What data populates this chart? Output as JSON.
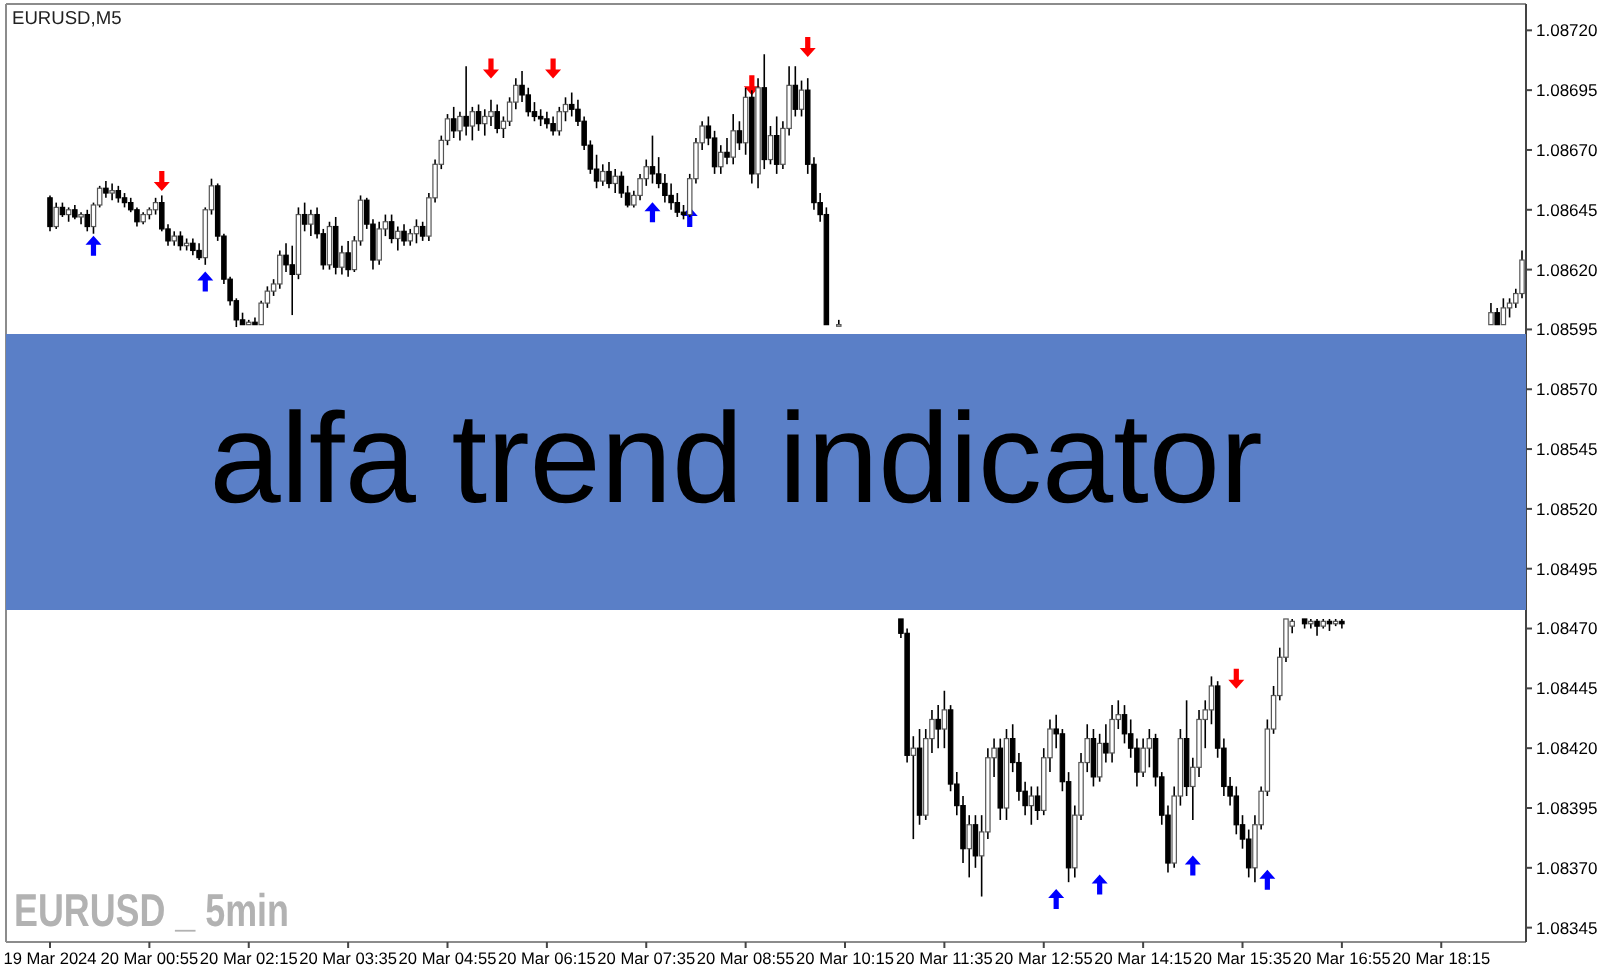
{
  "chart_data": {
    "type": "candlestick",
    "title": "EURUSD,M5",
    "annotations": [
      "alfa trend indicator",
      "EURUSD _ 5min"
    ],
    "categories": [
      "19 Mar 2024",
      null,
      null,
      null,
      null,
      null,
      null,
      null,
      null,
      null,
      null,
      null,
      null,
      null,
      null,
      null,
      "20 Mar 00:55",
      null,
      null,
      null,
      null,
      null,
      null,
      null,
      null,
      null,
      null,
      null,
      null,
      null,
      null,
      null,
      "20 Mar 02:15",
      null,
      null,
      null,
      null,
      null,
      null,
      null,
      null,
      null,
      null,
      null,
      null,
      null,
      null,
      null,
      "20 Mar 03:35",
      null,
      null,
      null,
      null,
      null,
      null,
      null,
      null,
      null,
      null,
      null,
      null,
      null,
      null,
      null,
      "20 Mar 04:55",
      null,
      null,
      null,
      null,
      null,
      null,
      null,
      null,
      null,
      null,
      null,
      null,
      null,
      null,
      null,
      "20 Mar 06:15",
      null,
      null,
      null,
      null,
      null,
      null,
      null,
      null,
      null,
      null,
      null,
      null,
      null,
      null,
      null,
      "20 Mar 07:35",
      null,
      null,
      null,
      null,
      null,
      null,
      null,
      null,
      null,
      null,
      null,
      null,
      null,
      null,
      null,
      "20 Mar 08:55",
      null,
      null,
      null,
      null,
      null,
      null,
      null,
      null,
      null,
      null,
      null,
      null,
      null,
      null,
      null,
      "20 Mar 10:15",
      null,
      null,
      null,
      null,
      null,
      null,
      null,
      null,
      null,
      null,
      null,
      null,
      null,
      null,
      null,
      "20 Mar 11:35",
      null,
      null,
      null,
      null,
      null,
      null,
      null,
      null,
      null,
      null,
      null,
      null,
      null,
      null,
      null,
      "20 Mar 12:55",
      null,
      null,
      null,
      null,
      null,
      null,
      null,
      null,
      null,
      null,
      null,
      null,
      null,
      null,
      null,
      "20 Mar 14:15",
      null,
      null,
      null,
      null,
      null,
      null,
      null,
      null,
      null,
      null,
      null,
      null,
      null,
      null,
      null,
      "20 Mar 15:35",
      null,
      null,
      null,
      null,
      null,
      null,
      null,
      null,
      null,
      null,
      null,
      null,
      null,
      null,
      null,
      "20 Mar 16:55",
      null,
      null,
      null,
      null,
      null,
      null,
      null,
      null,
      null,
      null,
      null,
      null,
      null,
      null,
      null,
      "20 Mar 18:15",
      null,
      null,
      null,
      null,
      null,
      null,
      null,
      null,
      null,
      null,
      null,
      null,
      null
    ],
    "ohlc": [
      [
        1.0865,
        1.08651,
        1.08636,
        1.08638
      ],
      [
        1.08638,
        1.08648,
        1.08637,
        1.08646
      ],
      [
        1.08646,
        1.08648,
        1.08642,
        1.08643
      ],
      [
        1.08643,
        1.08646,
        1.0864,
        1.08645
      ],
      [
        1.08645,
        1.08647,
        1.08641,
        1.08642
      ],
      [
        1.08642,
        1.08644,
        1.08639,
        1.08643
      ],
      [
        1.08643,
        1.08645,
        1.08636,
        1.08638
      ],
      [
        1.08638,
        1.08648,
        1.08635,
        1.08647
      ],
      [
        1.08647,
        1.08655,
        1.08646,
        1.08654
      ],
      [
        1.08654,
        1.08657,
        1.0865,
        1.08652
      ],
      [
        1.08652,
        1.08656,
        1.08649,
        1.08653
      ],
      [
        1.08653,
        1.08655,
        1.08648,
        1.0865
      ],
      [
        1.0865,
        1.08652,
        1.08646,
        1.08648
      ],
      [
        1.08648,
        1.0865,
        1.08644,
        1.08645
      ],
      [
        1.08645,
        1.08646,
        1.08638,
        1.0864
      ],
      [
        1.0864,
        1.08644,
        1.08639,
        1.08643
      ],
      [
        1.08643,
        1.08646,
        1.08641,
        1.08645
      ],
      [
        1.08645,
        1.0865,
        1.08643,
        1.08648
      ],
      [
        1.08648,
        1.08651,
        1.08636,
        1.08637
      ],
      [
        1.08637,
        1.08639,
        1.0863,
        1.08632
      ],
      [
        1.08632,
        1.08636,
        1.0863,
        1.08634
      ],
      [
        1.08634,
        1.08636,
        1.08628,
        1.0863
      ],
      [
        1.0863,
        1.08633,
        1.08628,
        1.08631
      ],
      [
        1.08631,
        1.08633,
        1.08626,
        1.08628
      ],
      [
        1.08628,
        1.08631,
        1.08624,
        1.08625
      ],
      [
        1.08625,
        1.08646,
        1.08622,
        1.08645
      ],
      [
        1.08645,
        1.08658,
        1.08643,
        1.08655
      ],
      [
        1.08655,
        1.08656,
        1.08632,
        1.08634
      ],
      [
        1.08634,
        1.08635,
        1.08614,
        1.08616
      ],
      [
        1.08616,
        1.08617,
        1.08605,
        1.08607
      ],
      [
        1.08607,
        1.08608,
        1.08596,
        1.08599
      ],
      [
        1.08599,
        1.08602,
        1.08597,
        1.08597
      ],
      [
        1.08597,
        1.08599,
        1.08597,
        1.08598
      ],
      [
        1.08598,
        1.086,
        1.08597,
        1.08597
      ],
      [
        1.08597,
        1.08607,
        1.08597,
        1.08606
      ],
      [
        1.08606,
        1.08613,
        1.08604,
        1.08611
      ],
      [
        1.08611,
        1.08616,
        1.08609,
        1.08614
      ],
      [
        1.08614,
        1.08628,
        1.08612,
        1.08626
      ],
      [
        1.08626,
        1.08631,
        1.08619,
        1.08622
      ],
      [
        1.08622,
        1.0863,
        1.08601,
        1.08618
      ],
      [
        1.08618,
        1.08646,
        1.08616,
        1.08643
      ],
      [
        1.08643,
        1.08648,
        1.08636,
        1.08639
      ],
      [
        1.08639,
        1.08645,
        1.08634,
        1.08643
      ],
      [
        1.08643,
        1.08646,
        1.08633,
        1.08635
      ],
      [
        1.08635,
        1.08637,
        1.0862,
        1.08622
      ],
      [
        1.08622,
        1.0864,
        1.0862,
        1.08638
      ],
      [
        1.08638,
        1.08642,
        1.08618,
        1.08621
      ],
      [
        1.08621,
        1.0863,
        1.08618,
        1.08627
      ],
      [
        1.08627,
        1.08632,
        1.08617,
        1.0862
      ],
      [
        1.0862,
        1.08634,
        1.08619,
        1.08632
      ],
      [
        1.08632,
        1.08651,
        1.0863,
        1.08649
      ],
      [
        1.08649,
        1.0865,
        1.08637,
        1.08639
      ],
      [
        1.08639,
        1.08641,
        1.0862,
        1.08624
      ],
      [
        1.08624,
        1.0864,
        1.08622,
        1.08637
      ],
      [
        1.08637,
        1.08643,
        1.08634,
        1.0864
      ],
      [
        1.0864,
        1.08643,
        1.08631,
        1.08633
      ],
      [
        1.08633,
        1.08638,
        1.08628,
        1.08636
      ],
      [
        1.08636,
        1.08639,
        1.0863,
        1.08632
      ],
      [
        1.08632,
        1.08637,
        1.0863,
        1.08635
      ],
      [
        1.08635,
        1.08641,
        1.08631,
        1.08638
      ],
      [
        1.08638,
        1.0864,
        1.08632,
        1.08634
      ],
      [
        1.08634,
        1.08652,
        1.08632,
        1.0865
      ],
      [
        1.0865,
        1.08666,
        1.08648,
        1.08664
      ],
      [
        1.08664,
        1.08676,
        1.08662,
        1.08674
      ],
      [
        1.08674,
        1.08685,
        1.08672,
        1.08683
      ],
      [
        1.08683,
        1.08688,
        1.08675,
        1.08678
      ],
      [
        1.08678,
        1.08686,
        1.08674,
        1.08684
      ],
      [
        1.08684,
        1.08705,
        1.08676,
        1.0868
      ],
      [
        1.0868,
        1.08688,
        1.08674,
        1.08686
      ],
      [
        1.08686,
        1.08689,
        1.08678,
        1.08681
      ],
      [
        1.08681,
        1.08687,
        1.08676,
        1.08684
      ],
      [
        1.08684,
        1.08691,
        1.0868,
        1.08686
      ],
      [
        1.08686,
        1.08689,
        1.08677,
        1.08679
      ],
      [
        1.08679,
        1.08684,
        1.08675,
        1.08682
      ],
      [
        1.08682,
        1.08692,
        1.0868,
        1.0869
      ],
      [
        1.0869,
        1.087,
        1.08687,
        1.08697
      ],
      [
        1.08697,
        1.08703,
        1.0869,
        1.08693
      ],
      [
        1.08693,
        1.08696,
        1.08684,
        1.08686
      ],
      [
        1.08686,
        1.0869,
        1.08682,
        1.08684
      ],
      [
        1.08684,
        1.08687,
        1.0868,
        1.08683
      ],
      [
        1.08683,
        1.08686,
        1.08679,
        1.08681
      ],
      [
        1.08681,
        1.08684,
        1.08676,
        1.08678
      ],
      [
        1.08678,
        1.08688,
        1.08676,
        1.08686
      ],
      [
        1.08686,
        1.08692,
        1.08682,
        1.08689
      ],
      [
        1.08689,
        1.08694,
        1.08684,
        1.08687
      ],
      [
        1.08687,
        1.08691,
        1.0868,
        1.08682
      ],
      [
        1.08682,
        1.08684,
        1.0867,
        1.08672
      ],
      [
        1.08672,
        1.08674,
        1.0866,
        1.08662
      ],
      [
        1.08662,
        1.08668,
        1.08654,
        1.08657
      ],
      [
        1.08657,
        1.08664,
        1.08655,
        1.08661
      ],
      [
        1.08661,
        1.08665,
        1.08654,
        1.08656
      ],
      [
        1.08656,
        1.08662,
        1.08652,
        1.08659
      ],
      [
        1.08659,
        1.08661,
        1.0865,
        1.08652
      ],
      [
        1.08652,
        1.08655,
        1.08646,
        1.08647
      ],
      [
        1.08647,
        1.08653,
        1.08646,
        1.08651
      ],
      [
        1.08651,
        1.0866,
        1.08649,
        1.08658
      ],
      [
        1.08658,
        1.08666,
        1.08655,
        1.08663
      ],
      [
        1.08663,
        1.08676,
        1.08656,
        1.0866
      ],
      [
        1.0866,
        1.08667,
        1.08654,
        1.08656
      ],
      [
        1.08656,
        1.0866,
        1.08648,
        1.08651
      ],
      [
        1.08651,
        1.08656,
        1.08645,
        1.08648
      ],
      [
        1.08648,
        1.08652,
        1.08642,
        1.08644
      ],
      [
        1.08644,
        1.08647,
        1.08641,
        1.08643
      ],
      [
        1.08643,
        1.0866,
        1.08642,
        1.08658
      ],
      [
        1.08658,
        1.08675,
        1.08656,
        1.08673
      ],
      [
        1.08673,
        1.08682,
        1.0867,
        1.0868
      ],
      [
        1.0868,
        1.08684,
        1.08672,
        1.08675
      ],
      [
        1.08675,
        1.08678,
        1.0866,
        1.08663
      ],
      [
        1.08663,
        1.08672,
        1.0866,
        1.08669
      ],
      [
        1.08669,
        1.08675,
        1.08664,
        1.08667
      ],
      [
        1.08667,
        1.08685,
        1.08664,
        1.08678
      ],
      [
        1.08678,
        1.08682,
        1.0867,
        1.08673
      ],
      [
        1.08673,
        1.08696,
        1.08668,
        1.08692
      ],
      [
        1.08692,
        1.08695,
        1.08656,
        1.0866
      ],
      [
        1.0866,
        1.087,
        1.08654,
        1.08696
      ],
      [
        1.08696,
        1.0871,
        1.08662,
        1.08666
      ],
      [
        1.08666,
        1.0868,
        1.08664,
        1.08676
      ],
      [
        1.08676,
        1.08684,
        1.0866,
        1.08664
      ],
      [
        1.08664,
        1.08682,
        1.08662,
        1.08679
      ],
      [
        1.08679,
        1.08705,
        1.08676,
        1.08697
      ],
      [
        1.08697,
        1.08705,
        1.08684,
        1.08687
      ],
      [
        1.08687,
        1.08699,
        1.08684,
        1.08695
      ],
      [
        1.08695,
        1.087,
        1.0866,
        1.08664
      ],
      [
        1.08664,
        1.08667,
        1.08645,
        1.08648
      ],
      [
        1.08648,
        1.08652,
        1.0864,
        1.08643
      ],
      [
        1.08643,
        1.08646,
        1.08597,
        1.08597
      ],
      null,
      [
        1.08597,
        1.08599,
        1.08597,
        1.08597
      ],
      null,
      null,
      null,
      null,
      null,
      null,
      null,
      null,
      null,
      [
        1.08474,
        1.08474,
        1.08466,
        1.08468
      ],
      [
        1.08468,
        1.0847,
        1.08414,
        1.08417
      ],
      [
        1.08417,
        1.08425,
        1.08382,
        1.0842
      ],
      [
        1.0842,
        1.08428,
        1.08388,
        1.08392
      ],
      [
        1.08392,
        1.08428,
        1.0839,
        1.08424
      ],
      [
        1.08424,
        1.08436,
        1.08418,
        1.08432
      ],
      [
        1.08432,
        1.08438,
        1.0842,
        1.08428
      ],
      [
        1.08428,
        1.08444,
        1.0842,
        1.08436
      ],
      [
        1.08436,
        1.08438,
        1.08402,
        1.08405
      ],
      [
        1.08405,
        1.0841,
        1.08392,
        1.08396
      ],
      [
        1.08396,
        1.084,
        1.08372,
        1.08378
      ],
      [
        1.08378,
        1.08392,
        1.08366,
        1.08388
      ],
      [
        1.08388,
        1.08392,
        1.0837,
        1.08375
      ],
      [
        1.08375,
        1.08392,
        1.08358,
        1.08385
      ],
      [
        1.08385,
        1.0842,
        1.08382,
        1.08416
      ],
      [
        1.08416,
        1.08424,
        1.08408,
        1.0842
      ],
      [
        1.0842,
        1.08424,
        1.0839,
        1.08395
      ],
      [
        1.08395,
        1.08428,
        1.0839,
        1.08424
      ],
      [
        1.08424,
        1.0843,
        1.0841,
        1.08414
      ],
      [
        1.08414,
        1.08418,
        1.08398,
        1.08402
      ],
      [
        1.08402,
        1.08406,
        1.08392,
        1.08396
      ],
      [
        1.08396,
        1.08404,
        1.08388,
        1.084
      ],
      [
        1.084,
        1.08404,
        1.0839,
        1.08394
      ],
      [
        1.08394,
        1.0842,
        1.08392,
        1.08416
      ],
      [
        1.08416,
        1.08432,
        1.0841,
        1.08428
      ],
      [
        1.08428,
        1.08434,
        1.0842,
        1.08426
      ],
      [
        1.08426,
        1.08428,
        1.08402,
        1.08406
      ],
      [
        1.08406,
        1.0841,
        1.08364,
        1.0837
      ],
      [
        1.0837,
        1.08396,
        1.08366,
        1.08392
      ],
      [
        1.08392,
        1.08418,
        1.0839,
        1.08414
      ],
      [
        1.08414,
        1.0843,
        1.0841,
        1.08424
      ],
      [
        1.08424,
        1.08428,
        1.08404,
        1.08408
      ],
      [
        1.08408,
        1.08426,
        1.08406,
        1.08422
      ],
      [
        1.08422,
        1.0843,
        1.08414,
        1.08418
      ],
      [
        1.08418,
        1.08438,
        1.08414,
        1.08432
      ],
      [
        1.08432,
        1.0844,
        1.08428,
        1.08434
      ],
      [
        1.08434,
        1.08438,
        1.08422,
        1.08426
      ],
      [
        1.08426,
        1.08432,
        1.08416,
        1.0842
      ],
      [
        1.0842,
        1.08424,
        1.08404,
        1.0841
      ],
      [
        1.0841,
        1.08424,
        1.08408,
        1.0842
      ],
      [
        1.0842,
        1.08428,
        1.08412,
        1.08424
      ],
      [
        1.08424,
        1.08426,
        1.08404,
        1.08408
      ],
      [
        1.08408,
        1.0841,
        1.08388,
        1.08392
      ],
      [
        1.08392,
        1.08396,
        1.08368,
        1.08372
      ],
      [
        1.08372,
        1.08404,
        1.0837,
        1.084
      ],
      [
        1.084,
        1.08428,
        1.08396,
        1.08424
      ],
      [
        1.08424,
        1.0844,
        1.084,
        1.08404
      ],
      [
        1.08404,
        1.08416,
        1.0839,
        1.08412
      ],
      [
        1.08412,
        1.08436,
        1.08408,
        1.08432
      ],
      [
        1.08432,
        1.0844,
        1.0842,
        1.08436
      ],
      [
        1.08436,
        1.0845,
        1.0843,
        1.08446
      ],
      [
        1.08446,
        1.08448,
        1.08416,
        1.0842
      ],
      [
        1.0842,
        1.08424,
        1.084,
        1.08404
      ],
      [
        1.08404,
        1.08408,
        1.08396,
        1.084
      ],
      [
        1.084,
        1.08404,
        1.08384,
        1.08388
      ],
      [
        1.08388,
        1.08392,
        1.08378,
        1.08382
      ],
      [
        1.08382,
        1.08386,
        1.08366,
        1.0837
      ],
      [
        1.0837,
        1.08392,
        1.08364,
        1.08388
      ],
      [
        1.08388,
        1.08404,
        1.08386,
        1.08402
      ],
      [
        1.08402,
        1.08432,
        1.084,
        1.08428
      ],
      [
        1.08428,
        1.08446,
        1.08426,
        1.08442
      ],
      [
        1.08442,
        1.08462,
        1.0844,
        1.08458
      ],
      [
        1.08458,
        1.08474,
        1.08456,
        1.08474
      ],
      [
        1.08471,
        1.08474,
        1.08468,
        1.08473
      ],
      null,
      [
        1.08474,
        1.08474,
        1.0847,
        1.08472
      ],
      [
        1.08472,
        1.08474,
        1.0847,
        1.08473
      ],
      [
        1.08473,
        1.08474,
        1.08467,
        1.08471
      ],
      [
        1.08471,
        1.08474,
        1.0847,
        1.08473
      ],
      [
        1.08473,
        1.08474,
        1.08469,
        1.08472
      ],
      [
        1.08472,
        1.08474,
        1.08471,
        1.08473
      ],
      [
        1.08473,
        1.08474,
        1.0847,
        1.08472
      ],
      null,
      null,
      null,
      null,
      null,
      null,
      null,
      null,
      null,
      null,
      null,
      null,
      null,
      null,
      null,
      null,
      null,
      null,
      null,
      null,
      null,
      null,
      null,
      [
        1.08597,
        1.08606,
        1.08597,
        1.08602
      ],
      [
        1.08602,
        1.08604,
        1.08597,
        1.08597
      ],
      [
        1.08597,
        1.08608,
        1.08597,
        1.08604
      ],
      [
        1.08604,
        1.08608,
        1.086,
        1.08606
      ],
      [
        1.08606,
        1.08612,
        1.08604,
        1.0861
      ],
      [
        1.0861,
        1.08628,
        1.08608,
        1.08624
      ]
    ],
    "series": [
      {
        "type": "scatter",
        "color": "#0000ff",
        "values": [
          null,
          null,
          null,
          null,
          null,
          null,
          null,
          1.0863,
          null,
          null,
          null,
          null,
          null,
          null,
          null,
          null,
          null,
          null,
          null,
          null,
          null,
          null,
          null,
          null,
          null,
          1.08615,
          null,
          null,
          null,
          null,
          null,
          null,
          null,
          null,
          null,
          null,
          null,
          null,
          null,
          null,
          null,
          null,
          null,
          null,
          null,
          null,
          null,
          null,
          null,
          null,
          null,
          null,
          null,
          null,
          null,
          null,
          null,
          null,
          null,
          null,
          null,
          null,
          null,
          null,
          null,
          null,
          null,
          null,
          null,
          null,
          null,
          null,
          null,
          null,
          null,
          null,
          null,
          null,
          null,
          null,
          null,
          null,
          null,
          null,
          null,
          null,
          null,
          null,
          null,
          null,
          null,
          null,
          null,
          null,
          null,
          null,
          null,
          1.08644,
          null,
          null,
          null,
          null,
          null,
          1.08642,
          null,
          null,
          null,
          null,
          null,
          null,
          null,
          null,
          null,
          null,
          null,
          null,
          null,
          null,
          null,
          null,
          null,
          null,
          null,
          null,
          null,
          null,
          null,
          null,
          null,
          null,
          null,
          null,
          null,
          null,
          null,
          null,
          null,
          null,
          null,
          null,
          null,
          null,
          null,
          null,
          null,
          null,
          null,
          null,
          null,
          null,
          null,
          null,
          null,
          null,
          null,
          null,
          null,
          null,
          null,
          null,
          null,
          null,
          1.08357,
          null,
          null,
          null,
          null,
          null,
          null,
          1.08363,
          null,
          null,
          null,
          null,
          null,
          null,
          null,
          null,
          null,
          null,
          null,
          null,
          null,
          null,
          1.08371,
          null,
          null,
          null,
          null,
          null,
          null,
          null,
          null,
          null,
          null,
          null,
          1.08365,
          null,
          null,
          null,
          null,
          null,
          null,
          null,
          null,
          null,
          null,
          null,
          null,
          null,
          null,
          null,
          null,
          null,
          null,
          null,
          null,
          null,
          null,
          null,
          null,
          null,
          null,
          null,
          null,
          null,
          null,
          null,
          null,
          null,
          null,
          null,
          null,
          null,
          null,
          null,
          null,
          null
        ]
      },
      {
        "type": "scatter",
        "color": "#ff0000",
        "values": [
          null,
          null,
          null,
          null,
          null,
          null,
          null,
          null,
          null,
          null,
          null,
          null,
          null,
          null,
          null,
          null,
          null,
          null,
          1.08657,
          null,
          null,
          null,
          null,
          null,
          null,
          null,
          null,
          null,
          null,
          null,
          null,
          null,
          null,
          null,
          null,
          null,
          null,
          null,
          null,
          null,
          null,
          null,
          null,
          null,
          null,
          null,
          null,
          null,
          null,
          null,
          null,
          null,
          null,
          null,
          null,
          null,
          null,
          null,
          null,
          null,
          null,
          null,
          null,
          null,
          null,
          null,
          null,
          null,
          null,
          null,
          null,
          1.08704,
          null,
          null,
          null,
          null,
          null,
          null,
          null,
          null,
          null,
          1.08704,
          null,
          null,
          null,
          null,
          null,
          null,
          null,
          null,
          null,
          null,
          null,
          null,
          null,
          null,
          null,
          null,
          null,
          null,
          null,
          null,
          null,
          null,
          null,
          null,
          null,
          null,
          null,
          null,
          null,
          null,
          null,
          1.08697,
          null,
          null,
          null,
          null,
          null,
          null,
          null,
          null,
          1.08713,
          null,
          null,
          null,
          null,
          null,
          null,
          null,
          null,
          null,
          null,
          null,
          null,
          null,
          null,
          null,
          null,
          null,
          null,
          null,
          null,
          null,
          null,
          null,
          null,
          null,
          null,
          null,
          null,
          null,
          null,
          null,
          null,
          null,
          null,
          null,
          null,
          null,
          null,
          null,
          null,
          null,
          null,
          null,
          null,
          null,
          null,
          null,
          null,
          null,
          null,
          null,
          null,
          null,
          null,
          null,
          null,
          null,
          null,
          null,
          null,
          null,
          null,
          null,
          null,
          null,
          null,
          null,
          null,
          1.08449,
          null,
          null,
          null,
          null,
          null,
          null,
          null,
          null,
          null,
          null,
          null,
          null,
          null,
          null,
          null,
          null,
          null,
          null,
          null,
          null,
          null,
          null,
          null,
          null,
          null,
          null,
          null,
          null,
          null,
          null,
          null,
          null,
          null,
          null,
          null,
          null,
          null,
          null,
          null,
          null,
          null,
          null,
          null,
          null,
          null,
          null
        ]
      }
    ],
    "ylim": [
      1.08339,
      1.08731
    ],
    "yticks": [
      {
        "value": 1.0872,
        "label": "1.08720"
      },
      1.08695,
      {
        "value": 1.0867,
        "label": "1.08670"
      },
      1.08645,
      {
        "value": 1.0862,
        "label": "1.08620"
      },
      1.08595,
      {
        "value": 1.0857,
        "label": "1.08570"
      },
      1.08545,
      {
        "value": 1.0852,
        "label": "1.08520"
      },
      1.08495,
      {
        "value": 1.0847,
        "label": "1.08470"
      },
      1.08445,
      {
        "value": 1.0842,
        "label": "1.08420"
      },
      1.08395,
      {
        "value": 1.0837,
        "label": "1.08370"
      },
      1.08345
    ]
  }
}
